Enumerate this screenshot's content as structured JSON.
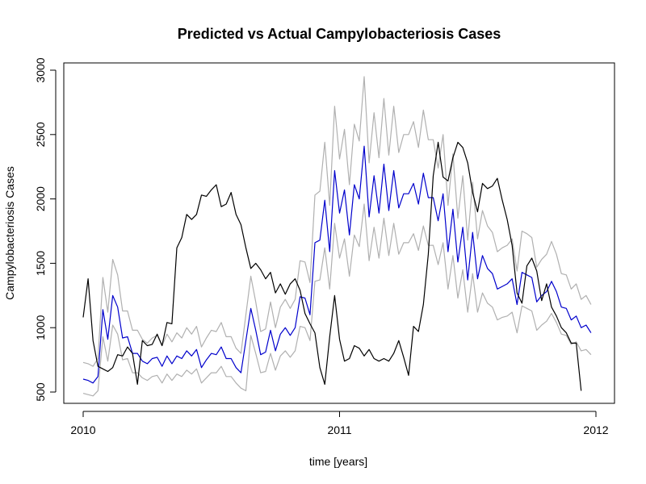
{
  "chart_data": {
    "type": "line",
    "title": "Predicted vs Actual Campylobacteriosis Cases",
    "xlabel": "time [years]",
    "ylabel": "Campylobacteriosis Cases",
    "xlim": [
      2010,
      2012
    ],
    "ylim": [
      450,
      3050
    ],
    "x_ticks": [
      2010,
      2011,
      2012
    ],
    "x_tick_labels": [
      "2010",
      "2011",
      "2012"
    ],
    "y_ticks": [
      500,
      1000,
      1500,
      2000,
      2500,
      3000
    ],
    "y_tick_labels": [
      "500",
      "1000",
      "1500",
      "2000",
      "2500",
      "3000"
    ],
    "grid": false,
    "legend": "none",
    "x_step": 0.01923,
    "series": [
      {
        "role": "actual",
        "color": "#000000",
        "values": [
          1080,
          1380,
          900,
          700,
          680,
          660,
          690,
          790,
          780,
          850,
          800,
          560,
          900,
          860,
          870,
          950,
          860,
          1040,
          1030,
          1620,
          1700,
          1880,
          1840,
          1880,
          2030,
          2020,
          2070,
          2110,
          1940,
          1960,
          2050,
          1880,
          1800,
          1620,
          1460,
          1500,
          1450,
          1380,
          1430,
          1270,
          1340,
          1260,
          1340,
          1380,
          1290,
          1110,
          1030,
          960,
          690,
          560,
          930,
          1250,
          910,
          740,
          760,
          860,
          840,
          780,
          830,
          760,
          740,
          760,
          740,
          800,
          900,
          770,
          630,
          1010,
          970,
          1180,
          1570,
          2180,
          2440,
          2170,
          2140,
          2320,
          2440,
          2400,
          2280,
          2050,
          1900,
          2120,
          2080,
          2100,
          2160,
          1990,
          1840,
          1640,
          1270,
          1190,
          1480,
          1540,
          1440,
          1210,
          1340,
          1160,
          1090,
          1000,
          960,
          880,
          880,
          510
        ]
      },
      {
        "role": "predicted",
        "color": "#0000cc",
        "values": [
          600,
          590,
          570,
          620,
          1140,
          910,
          1250,
          1160,
          920,
          930,
          800,
          800,
          740,
          720,
          760,
          770,
          700,
          780,
          720,
          780,
          760,
          820,
          780,
          830,
          690,
          750,
          800,
          790,
          850,
          760,
          760,
          690,
          650,
          900,
          1150,
          980,
          790,
          810,
          980,
          820,
          950,
          1000,
          940,
          1000,
          1240,
          1230,
          1100,
          1660,
          1680,
          1990,
          1590,
          2220,
          1890,
          2070,
          1720,
          2110,
          2000,
          2410,
          1860,
          2180,
          1890,
          2270,
          1910,
          2220,
          1930,
          2040,
          2040,
          2120,
          1960,
          2200,
          2010,
          2010,
          1830,
          2040,
          1590,
          1920,
          1510,
          1780,
          1370,
          1740,
          1380,
          1560,
          1460,
          1420,
          1300,
          1320,
          1340,
          1380,
          1180,
          1430,
          1410,
          1390,
          1200,
          1250,
          1280,
          1360,
          1280,
          1160,
          1150,
          1060,
          1090,
          1000,
          1020,
          960
        ]
      },
      {
        "role": "upper-bound",
        "color": "#b0b0b0",
        "values": [
          730,
          720,
          700,
          760,
          1390,
          1120,
          1530,
          1410,
          1130,
          1130,
          980,
          980,
          910,
          880,
          920,
          940,
          860,
          950,
          890,
          960,
          920,
          1000,
          950,
          1010,
          850,
          920,
          980,
          970,
          1040,
          930,
          930,
          840,
          800,
          1100,
          1400,
          1200,
          970,
          990,
          1200,
          1000,
          1160,
          1220,
          1150,
          1220,
          1520,
          1510,
          1350,
          2030,
          2060,
          2440,
          1950,
          2720,
          2310,
          2540,
          2110,
          2580,
          2450,
          2950,
          2280,
          2670,
          2320,
          2780,
          2340,
          2720,
          2360,
          2500,
          2500,
          2600,
          2400,
          2690,
          2460,
          2460,
          2240,
          2500,
          1950,
          2350,
          1850,
          2180,
          1680,
          2130,
          1690,
          1910,
          1790,
          1740,
          1590,
          1620,
          1640,
          1690,
          1440,
          1750,
          1730,
          1700,
          1470,
          1530,
          1570,
          1670,
          1570,
          1420,
          1410,
          1300,
          1340,
          1220,
          1250,
          1180
        ]
      },
      {
        "role": "lower-bound",
        "color": "#b0b0b0",
        "values": [
          490,
          480,
          470,
          510,
          930,
          740,
          1020,
          950,
          750,
          760,
          650,
          650,
          610,
          590,
          620,
          630,
          570,
          640,
          590,
          640,
          620,
          670,
          640,
          680,
          570,
          610,
          650,
          650,
          700,
          620,
          620,
          570,
          530,
          510,
          940,
          800,
          650,
          660,
          800,
          670,
          780,
          820,
          770,
          820,
          1010,
          1000,
          900,
          1360,
          1370,
          1620,
          1300,
          1810,
          1540,
          1690,
          1400,
          1720,
          1630,
          1960,
          1520,
          1780,
          1540,
          1850,
          1560,
          1810,
          1570,
          1660,
          1660,
          1730,
          1600,
          1790,
          1640,
          1640,
          1490,
          1660,
          1300,
          1560,
          1230,
          1450,
          1120,
          1420,
          1120,
          1270,
          1190,
          1160,
          1060,
          1080,
          1090,
          1120,
          960,
          1170,
          1150,
          1130,
          980,
          1020,
          1050,
          1110,
          1040,
          950,
          940,
          870,
          890,
          820,
          830,
          790
        ]
      }
    ]
  }
}
